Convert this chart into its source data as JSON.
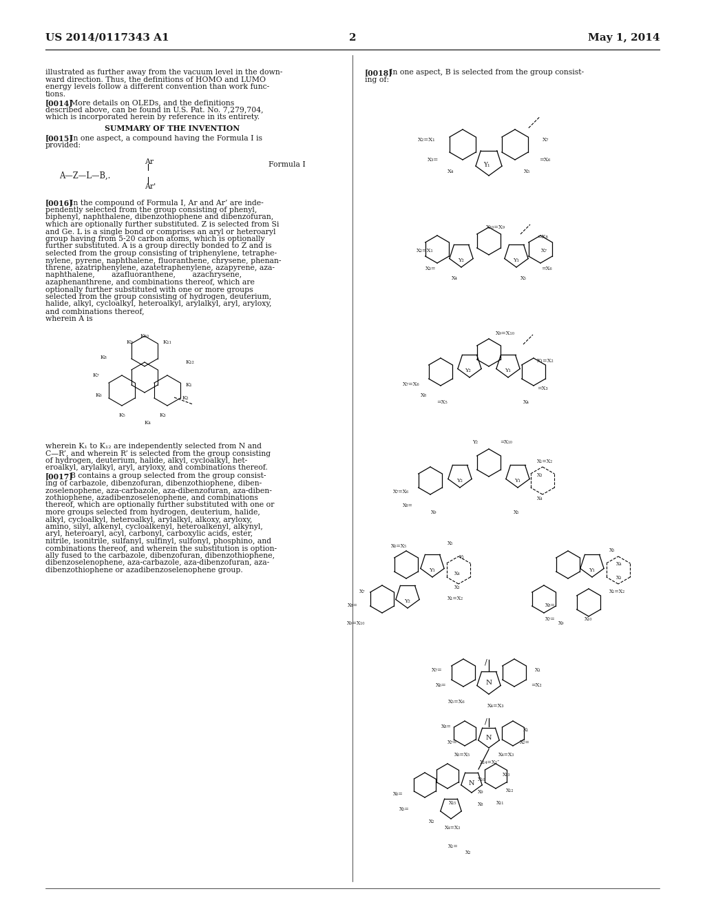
{
  "page_number": "2",
  "patent_number": "US 2014/0117343 A1",
  "date": "May 1, 2014",
  "bg_color": "#ffffff",
  "text_color": "#1a1a1a"
}
